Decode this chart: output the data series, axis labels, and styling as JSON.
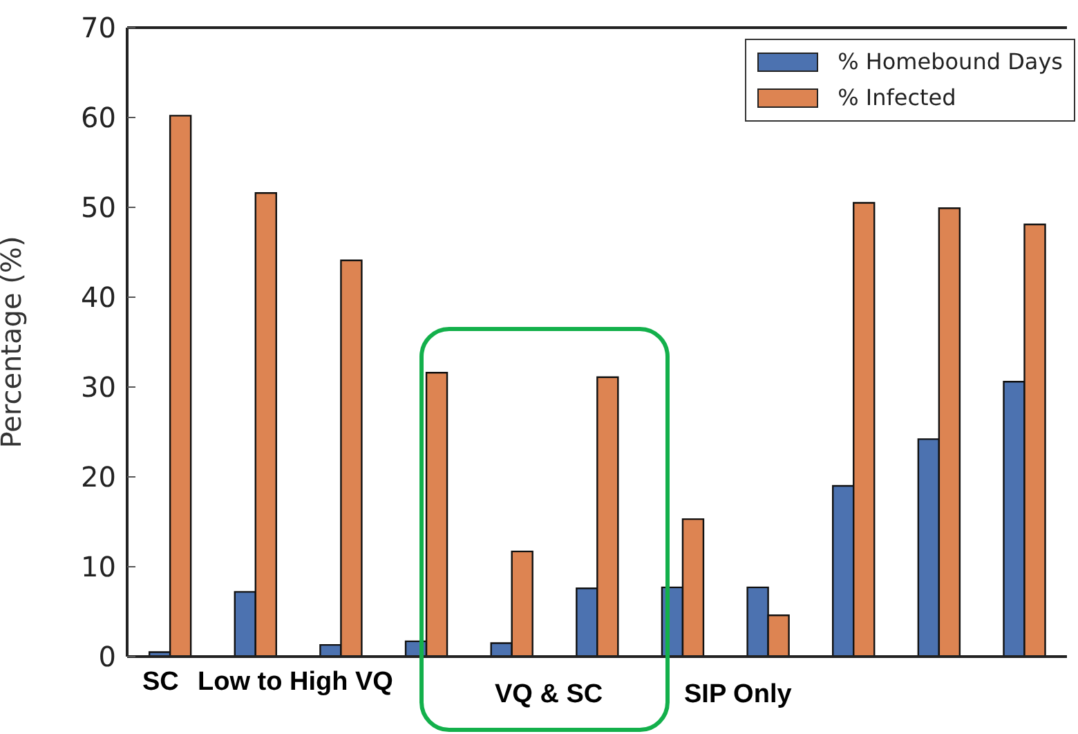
{
  "chart_data": {
    "type": "bar",
    "ylabel": "Percentage (%)",
    "categories": [
      null,
      null,
      null,
      null,
      null,
      null,
      null,
      null,
      null,
      null,
      null
    ],
    "series": [
      {
        "name": "% Homebound Days",
        "color": "#4c72b0",
        "values": [
          0.5,
          7.2,
          1.3,
          1.7,
          1.5,
          7.6,
          7.7,
          7.7,
          19,
          24.2,
          30.6
        ]
      },
      {
        "name": "% Infected",
        "color": "#dd8452",
        "values": [
          60.2,
          51.6,
          44.1,
          31.6,
          11.7,
          31.1,
          15.3,
          4.6,
          50.5,
          49.9,
          48.1
        ]
      }
    ],
    "ylim": [
      0,
      70
    ],
    "yticks": [
      0,
      10,
      20,
      30,
      40,
      50,
      60,
      70
    ],
    "annotations": [
      "SC",
      "Low to High VQ",
      "VQ & SC",
      "SIP Only"
    ],
    "tick_labels": "y",
    "legend": "top right"
  }
}
